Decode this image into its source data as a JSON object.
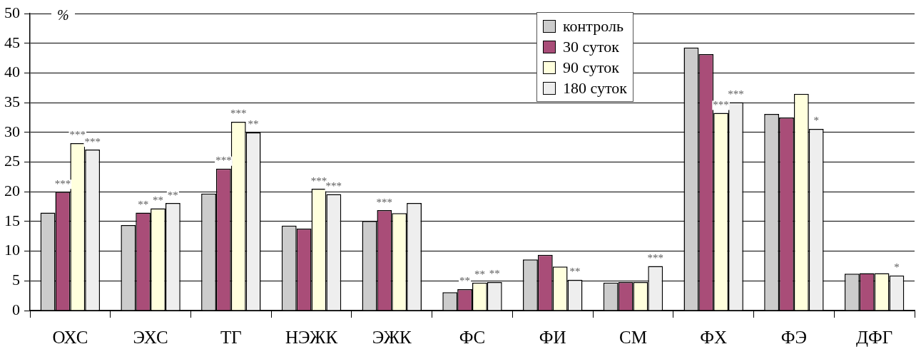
{
  "chart_data": {
    "type": "bar",
    "ylabel": "%",
    "categories": [
      "ОХС",
      "ЭХС",
      "ТГ",
      "НЭЖК",
      "ЭЖК",
      "ФС",
      "ФИ",
      "СМ",
      "ФХ",
      "ФЭ",
      "ДФГ"
    ],
    "series": [
      {
        "name": "контроль",
        "color": "#cccccc",
        "values": [
          16.5,
          14.4,
          19.7,
          14.3,
          15.1,
          3.1,
          8.6,
          4.7,
          44.3,
          33.1,
          6.2
        ],
        "value_labels": [
          null,
          null,
          null,
          null,
          null,
          null,
          null,
          null,
          null,
          null,
          null
        ]
      },
      {
        "name": "30 суток",
        "color": "#a94d78",
        "values": [
          20.0,
          16.5,
          23.9,
          13.8,
          16.9,
          3.6,
          9.4,
          4.8,
          43.2,
          32.5,
          6.3
        ],
        "value_labels": [
          "***",
          "**",
          "***",
          null,
          "***",
          "**",
          null,
          null,
          null,
          null,
          null
        ]
      },
      {
        "name": "90 суток",
        "color": "#ffffdd",
        "values": [
          28.2,
          17.2,
          31.8,
          20.5,
          16.4,
          4.7,
          7.4,
          4.8,
          33.3,
          36.5,
          6.3
        ],
        "value_labels": [
          "***",
          "**",
          "***",
          "***",
          null,
          "**",
          null,
          null,
          "***",
          null,
          null
        ]
      },
      {
        "name": "180 суток",
        "color": "#eeeeee",
        "values": [
          27.1,
          18.1,
          30.0,
          19.6,
          18.1,
          4.8,
          5.2,
          7.5,
          35.1,
          30.6,
          5.9
        ],
        "value_labels": [
          "***",
          "**",
          "**",
          "***",
          null,
          "**",
          "**",
          "***",
          "***",
          "*",
          "*"
        ]
      }
    ],
    "ylim": [
      0,
      50
    ],
    "yticks": [
      0,
      5,
      10,
      15,
      20,
      25,
      30,
      35,
      40,
      45,
      50
    ],
    "grid": "y",
    "legend": "top right"
  }
}
